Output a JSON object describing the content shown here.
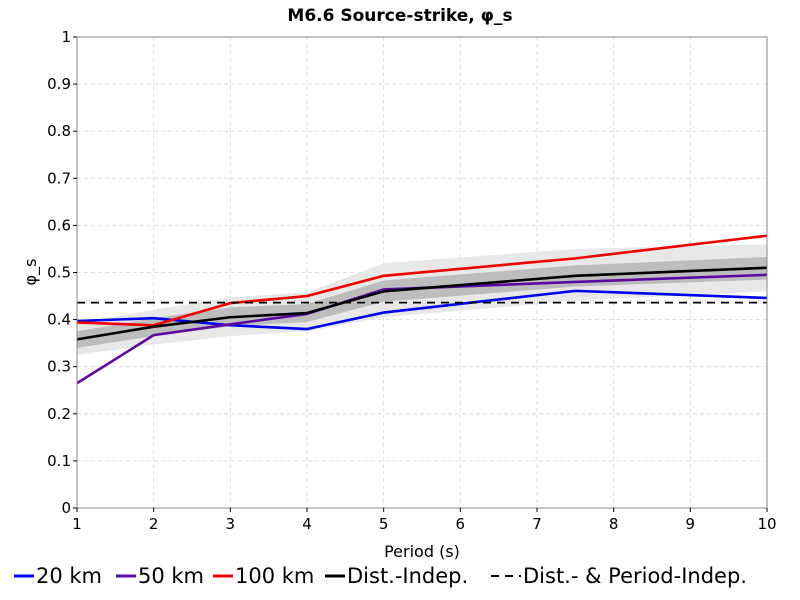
{
  "chart_data": {
    "type": "line",
    "title": "M6.6 Source-strike, φ_s",
    "xlabel": "Period (s)",
    "ylabel": "φ_s",
    "xlim": [
      1,
      10
    ],
    "ylim": [
      0,
      1
    ],
    "xticks": [
      1,
      2,
      3,
      4,
      5,
      6,
      7,
      8,
      9,
      10
    ],
    "yticks": [
      0,
      0.1,
      0.2,
      0.3,
      0.4,
      0.5,
      0.6,
      0.7,
      0.8,
      0.9,
      1
    ],
    "ytick_labels": [
      "0",
      "0.1",
      "0.2",
      "0.3",
      "0.4",
      "0.5",
      "0.6",
      "0.7",
      "0.8",
      "0.9",
      "1"
    ],
    "grid": true,
    "legend_position": "bottom",
    "bands": [
      {
        "x": [
          1,
          2,
          3,
          4,
          5,
          7.5,
          10
        ],
        "lower": [
          0.325,
          0.347,
          0.365,
          0.375,
          0.405,
          0.44,
          0.46
        ],
        "upper": [
          0.392,
          0.421,
          0.447,
          0.458,
          0.52,
          0.55,
          0.56
        ],
        "color": "#e8e8e8"
      },
      {
        "x": [
          1,
          2,
          3,
          4,
          5,
          7.5,
          10
        ],
        "lower": [
          0.34,
          0.365,
          0.386,
          0.395,
          0.438,
          0.47,
          0.485
        ],
        "upper": [
          0.375,
          0.403,
          0.426,
          0.433,
          0.483,
          0.515,
          0.533
        ],
        "color": "#bdbdbd"
      }
    ],
    "series": [
      {
        "name": "20 km",
        "color": "#0000ee",
        "dash": "solid",
        "x": [
          1,
          2,
          3,
          4,
          5,
          7.5,
          10
        ],
        "y": [
          0.397,
          0.403,
          0.388,
          0.38,
          0.415,
          0.461,
          0.446
        ]
      },
      {
        "name": "50 km",
        "color": "#5a0aa0",
        "dash": "solid",
        "x": [
          1,
          2,
          3,
          4,
          5,
          7.5,
          10
        ],
        "y": [
          0.265,
          0.367,
          0.39,
          0.412,
          0.464,
          0.48,
          0.495
        ]
      },
      {
        "name": "100 km",
        "color": "#ee0000",
        "dash": "solid",
        "x": [
          1,
          2,
          3,
          4,
          5,
          7.5,
          10
        ],
        "y": [
          0.394,
          0.388,
          0.435,
          0.45,
          0.493,
          0.53,
          0.578
        ]
      },
      {
        "name": "Dist.-Indep.",
        "color": "#000000",
        "dash": "solid",
        "x": [
          1,
          2,
          3,
          4,
          5,
          7.5,
          10
        ],
        "y": [
          0.358,
          0.385,
          0.405,
          0.414,
          0.46,
          0.493,
          0.51
        ]
      },
      {
        "name": "Dist.- & Period-Indep.",
        "color": "#000000",
        "dash": "dashed",
        "x": [
          1,
          10
        ],
        "y": [
          0.436,
          0.436
        ]
      }
    ]
  }
}
